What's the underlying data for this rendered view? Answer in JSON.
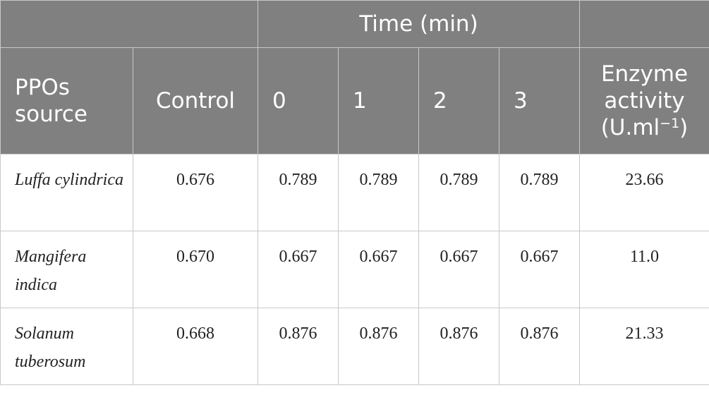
{
  "table": {
    "header": {
      "group": "Time (min)",
      "columns": [
        "PPOs source",
        "Control",
        "0",
        "1",
        "2",
        "3"
      ],
      "enzyme": {
        "text": "Enzyme activity (U.ml",
        "sup": "−1",
        "close": ")"
      }
    },
    "rows": [
      [
        "Luffa cylindrica",
        "0.676",
        "0.789",
        "0.789",
        "0.789",
        "0.789",
        "23.66"
      ],
      [
        "Mangifera indica",
        "0.670",
        "0.667",
        "0.667",
        "0.667",
        "0.667",
        "11.0"
      ],
      [
        "Solanum tuberosum",
        "0.668",
        "0.876",
        "0.876",
        "0.876",
        "0.876",
        "21.33"
      ]
    ]
  }
}
